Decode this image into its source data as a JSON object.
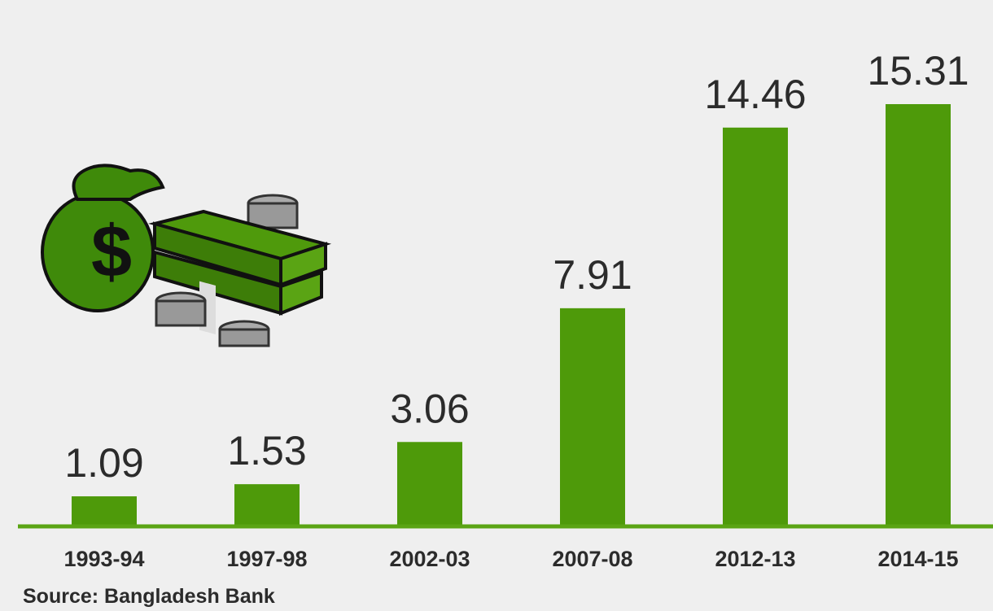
{
  "chart_data": {
    "type": "bar",
    "categories": [
      "1993-94",
      "1997-98",
      "2002-03",
      "2007-08",
      "2012-13",
      "2014-15"
    ],
    "values": [
      1.09,
      1.53,
      3.06,
      7.91,
      14.46,
      15.31
    ],
    "color": "#4e9a0a",
    "source": "Source: Bangladesh Bank"
  }
}
